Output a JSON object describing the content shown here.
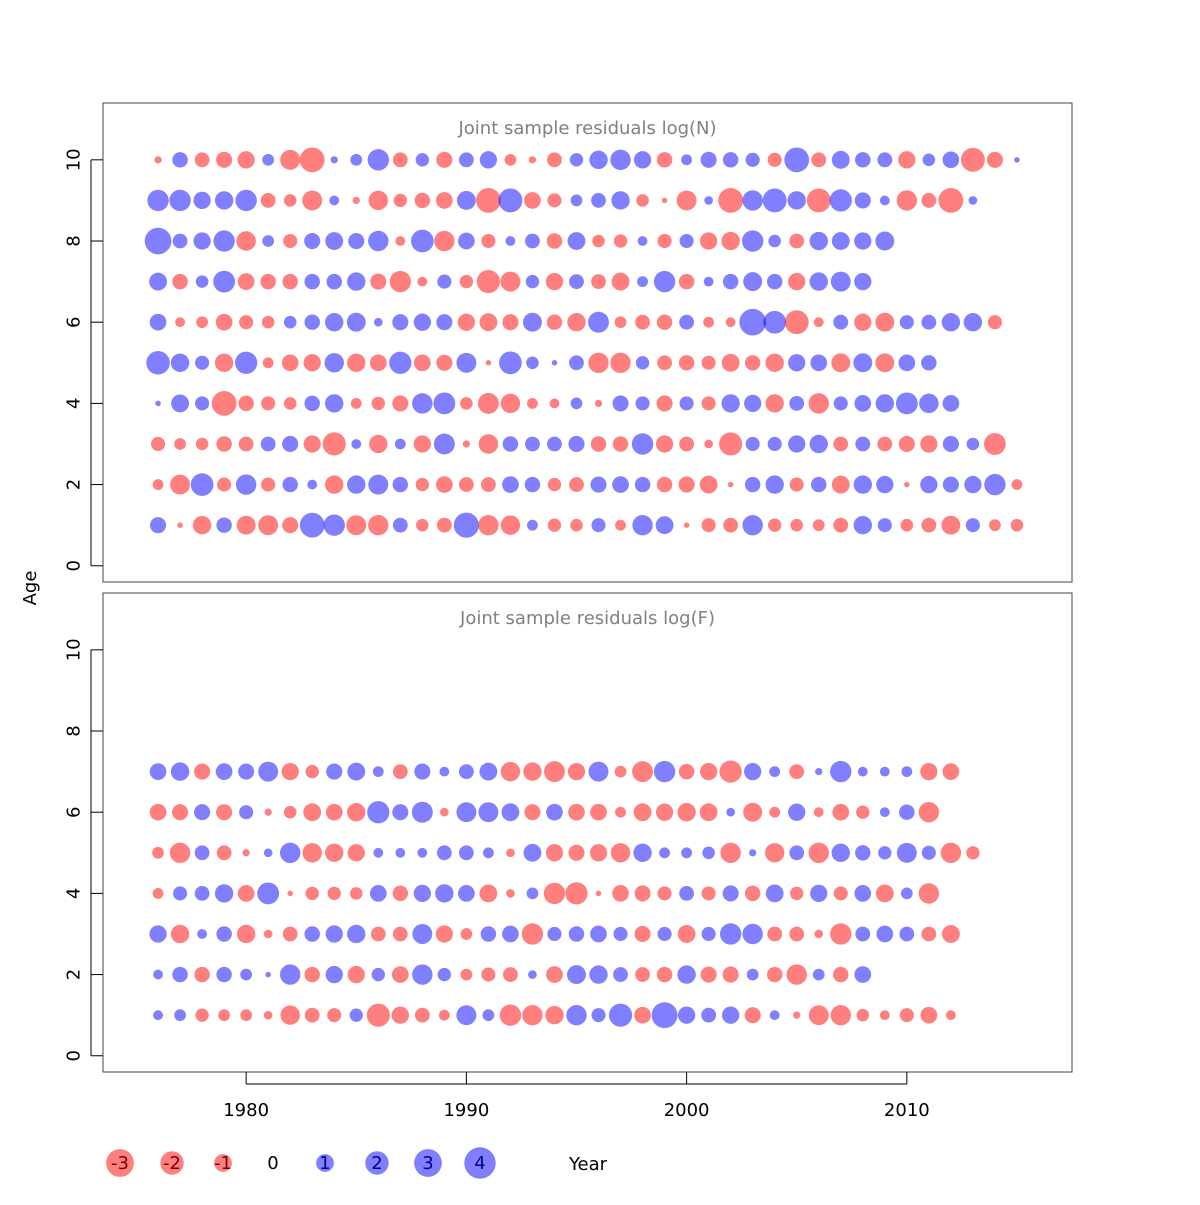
{
  "y_axis_label": "Age",
  "x_axis_label": "Year",
  "colors": {
    "positive": "#0000FF",
    "negative": "#FF0000",
    "title": "#808080",
    "frame": "#000000"
  },
  "fill_alpha": 0.5,
  "legend": [
    "-3",
    "-2",
    "-1",
    "0",
    "1",
    "2",
    "3",
    "4"
  ],
  "chart_data": [
    {
      "type": "bubble",
      "title": "Joint sample residuals log(N)",
      "xlabel": "Year",
      "ylabel": "Age",
      "xlim": [
        1973.5,
        2017.5
      ],
      "ylim": [
        -0.4,
        11.4
      ],
      "x_ticks": [
        1980,
        1990,
        2000,
        2010
      ],
      "y_ticks": [
        0,
        2,
        4,
        6,
        8,
        10
      ],
      "years": [
        1976,
        1977,
        1978,
        1979,
        1980,
        1981,
        1982,
        1983,
        1984,
        1985,
        1986,
        1987,
        1988,
        1989,
        1990,
        1991,
        1992,
        1993,
        1994,
        1995,
        1996,
        1997,
        1998,
        1999,
        2000,
        2001,
        2002,
        2003,
        2004,
        2005,
        2006,
        2007,
        2008,
        2009,
        2010,
        2011,
        2012,
        2013,
        2014,
        2015
      ],
      "ages": [
        1,
        2,
        3,
        4,
        5,
        6,
        7,
        8,
        9,
        10
      ],
      "residuals": [
        [
          1.2,
          -0.1,
          -1.6,
          1.1,
          -1.7,
          -1.9,
          -1.2,
          3.0,
          2.2,
          -1.9,
          -2.0,
          1.0,
          -0.7,
          -1.0,
          3.1,
          -2.0,
          -1.8,
          0.5,
          -0.8,
          -0.7,
          0.9,
          -0.5,
          2.0,
          1.5,
          -0.1,
          -0.9,
          -1.0,
          2.0,
          -0.8,
          -0.7,
          -0.6,
          -1.0,
          1.6,
          0.9,
          -0.7,
          -1.0,
          -1.7,
          0.9,
          -0.6,
          -0.7
        ],
        [
          -0.5,
          -1.9,
          2.5,
          -0.9,
          2.0,
          -0.9,
          1.1,
          0.4,
          -1.6,
          1.6,
          1.9,
          1.1,
          -0.8,
          -1.3,
          -1.0,
          -1.0,
          1.3,
          1.1,
          -0.8,
          -1.0,
          1.2,
          1.3,
          1.1,
          -1.1,
          -1.2,
          -1.5,
          -0.1,
          1.1,
          1.6,
          -0.9,
          1.1,
          -1.5,
          1.6,
          1.4,
          -0.1,
          1.4,
          1.2,
          1.4,
          2.2,
          -0.5
        ],
        [
          -0.9,
          -0.6,
          -0.7,
          -1.1,
          -1.0,
          1.0,
          1.2,
          -1.4,
          -2.6,
          0.4,
          -1.6,
          0.5,
          -1.4,
          2.1,
          -0.2,
          -1.8,
          1.1,
          1.0,
          1.0,
          1.2,
          -1.1,
          -1.1,
          2.2,
          -1.4,
          -1.0,
          -0.3,
          -2.6,
          0.9,
          0.9,
          1.4,
          1.6,
          -1.0,
          1.0,
          -1.0,
          -1.2,
          -1.4,
          1.2,
          0.7,
          -2.3
        ],
        [
          0.1,
          1.5,
          0.9,
          -3.0,
          -1.1,
          -0.9,
          -0.7,
          1.1,
          1.6,
          -0.5,
          -0.8,
          -1.2,
          2.0,
          2.3,
          -0.7,
          -2.1,
          -1.8,
          -0.5,
          -0.4,
          0.6,
          -0.2,
          1.2,
          0.9,
          -1.2,
          0.9,
          -0.9,
          1.6,
          1.4,
          -1.6,
          1.0,
          -2.0,
          0.9,
          1.3,
          1.6,
          2.3,
          1.8,
          1.3
        ],
        [
          2.7,
          1.6,
          0.9,
          -1.6,
          2.4,
          -0.5,
          -1.3,
          -1.4,
          1.8,
          -1.6,
          -1.3,
          2.4,
          -1.3,
          -1.2,
          1.9,
          -0.1,
          2.5,
          0.7,
          0.1,
          1.0,
          -2.0,
          -2.0,
          0.8,
          -1.0,
          -1.1,
          -0.9,
          -1.5,
          -1.1,
          -1.6,
          1.4,
          1.3,
          -1.7,
          1.7,
          -1.7,
          1.3,
          1.1
        ],
        [
          1.3,
          -0.4,
          -0.6,
          -1.3,
          -0.9,
          -0.7,
          0.7,
          1.1,
          1.6,
          1.7,
          0.3,
          1.2,
          1.4,
          1.2,
          -1.4,
          -1.5,
          -1.2,
          1.7,
          -1.1,
          -1.6,
          2.1,
          -0.6,
          -1.0,
          -1.1,
          1.0,
          -0.5,
          -0.4,
          3.5,
          2.5,
          -2.8,
          -0.4,
          1.0,
          -1.4,
          -1.7,
          0.9,
          1.0,
          1.6,
          1.6,
          -0.9
        ],
        [
          1.5,
          -1.1,
          0.7,
          2.3,
          -1.3,
          -1.1,
          -1.1,
          1.1,
          1.1,
          1.6,
          -1.2,
          -2.2,
          -0.4,
          0.9,
          -0.8,
          -2.6,
          -1.9,
          0.8,
          -1.4,
          1.0,
          -1.0,
          -1.5,
          0.5,
          2.2,
          -1.1,
          0.4,
          1.1,
          1.7,
          1.1,
          -1.4,
          1.6,
          1.9,
          1.4
        ],
        [
          3.5,
          1.0,
          1.4,
          2.2,
          -1.8,
          0.6,
          -0.9,
          1.2,
          1.5,
          1.2,
          2.0,
          -0.4,
          2.5,
          -2.0,
          1.3,
          -0.9,
          0.4,
          1.0,
          -1.1,
          1.5,
          -0.7,
          -0.8,
          0.4,
          -0.9,
          0.9,
          -1.4,
          -1.6,
          2.2,
          0.7,
          -1.0,
          1.6,
          1.5,
          1.4,
          1.7
        ],
        [
          2.2,
          2.2,
          1.4,
          1.6,
          2.2,
          -1.0,
          -0.7,
          -1.9,
          0.4,
          -0.2,
          -1.8,
          -0.8,
          -1.1,
          -1.3,
          1.7,
          -3.0,
          2.8,
          -1.3,
          -0.9,
          0.6,
          1.0,
          1.6,
          -0.7,
          -0.1,
          -1.9,
          0.3,
          -3.0,
          2.0,
          2.8,
          1.6,
          -2.8,
          2.4,
          1.2,
          0.4,
          -2.0,
          -1.0,
          -3.0,
          0.3
        ],
        [
          -0.2,
          1.1,
          -1.0,
          -1.2,
          -1.4,
          0.6,
          -1.9,
          -3.0,
          0.2,
          0.6,
          2.2,
          -1.0,
          0.8,
          -1.2,
          1.0,
          1.4,
          -0.6,
          -0.2,
          -1.0,
          0.8,
          1.6,
          2.0,
          1.4,
          -1.1,
          0.5,
          1.2,
          1.1,
          0.9,
          -0.9,
          3.0,
          -1.0,
          1.5,
          1.1,
          1.0,
          -1.4,
          0.7,
          1.3,
          -2.8,
          -1.2,
          0.1
        ]
      ]
    },
    {
      "type": "bubble",
      "title": "Joint sample residuals log(F)",
      "xlabel": "Year",
      "ylabel": "Age",
      "xlim": [
        1973.5,
        2017.5
      ],
      "ylim": [
        -0.4,
        11.4
      ],
      "x_ticks": [
        1980,
        1990,
        2000,
        2010
      ],
      "y_ticks": [
        0,
        2,
        4,
        6,
        8,
        10
      ],
      "years": [
        1976,
        1977,
        1978,
        1979,
        1980,
        1981,
        1982,
        1983,
        1984,
        1985,
        1986,
        1987,
        1988,
        1989,
        1990,
        1991,
        1992,
        1993,
        1994,
        1995,
        1996,
        1997,
        1998,
        1999,
        2000,
        2001,
        2002,
        2003,
        2004,
        2005,
        2006,
        2007,
        2008,
        2009,
        2010,
        2011,
        2012,
        2013,
        2014,
        2015
      ],
      "ages": [
        1,
        2,
        3,
        4,
        5,
        6,
        7
      ],
      "residuals": [
        [
          0.4,
          0.6,
          -0.8,
          -0.6,
          -0.6,
          -0.3,
          -1.8,
          -1.0,
          -0.9,
          0.8,
          -2.6,
          -1.4,
          -1.0,
          -0.5,
          1.9,
          0.6,
          -2.2,
          -2.0,
          -1.6,
          2.0,
          0.9,
          2.6,
          -1.3,
          3.3,
          1.4,
          1.0,
          1.4,
          -1.2,
          0.4,
          -0.2,
          -1.9,
          -2.0,
          -0.7,
          -0.4,
          -0.9,
          -1.3,
          -0.4
        ],
        [
          0.4,
          1.1,
          -1.1,
          1.1,
          0.6,
          0.1,
          2.0,
          -1.1,
          1.4,
          -1.4,
          0.8,
          -1.3,
          2.0,
          0.8,
          -0.6,
          -0.9,
          -1.0,
          0.3,
          -1.3,
          1.7,
          1.6,
          1.0,
          -1.0,
          -1.1,
          1.6,
          -1.2,
          -1.2,
          0.6,
          -1.1,
          -2.0,
          0.6,
          -1.1,
          1.3
        ],
        [
          1.4,
          -1.6,
          0.4,
          1.1,
          -1.6,
          -0.3,
          -1.0,
          1.1,
          1.4,
          1.6,
          -1.0,
          -1.0,
          1.9,
          -1.4,
          -0.6,
          1.1,
          1.3,
          -2.2,
          0.9,
          1.1,
          1.3,
          0.9,
          -1.2,
          0.9,
          -1.5,
          0.9,
          2.2,
          2.0,
          -1.0,
          -1.0,
          -0.3,
          -2.2,
          1.0,
          1.3,
          1.0,
          -1.0,
          -1.5
        ],
        [
          -0.5,
          0.9,
          1.0,
          1.6,
          -1.3,
          2.3,
          -0.1,
          -0.8,
          -0.8,
          -0.7,
          1.3,
          -1.1,
          1.4,
          1.6,
          1.3,
          -1.5,
          -0.3,
          0.6,
          -2.2,
          -2.4,
          -0.1,
          -1.3,
          -1.2,
          -0.9,
          1.0,
          -0.9,
          1.2,
          -1.1,
          1.5,
          -0.8,
          1.4,
          -0.9,
          1.3,
          -1.5,
          0.6,
          -2.0
        ],
        [
          -0.6,
          -2.0,
          1.0,
          -1.0,
          -0.2,
          0.3,
          2.0,
          -1.8,
          -1.6,
          -1.4,
          0.4,
          0.4,
          0.4,
          1.0,
          1.0,
          0.5,
          -0.3,
          1.5,
          -1.4,
          -1.2,
          -1.4,
          -1.8,
          1.6,
          0.5,
          0.5,
          0.7,
          -2.0,
          0.2,
          -1.8,
          1.0,
          -2.0,
          1.6,
          1.1,
          0.8,
          1.9,
          0.9,
          -2.0,
          -0.8
        ],
        [
          -1.3,
          -1.2,
          1.2,
          -1.2,
          0.9,
          -0.2,
          -0.7,
          -1.5,
          -1.3,
          -1.6,
          2.4,
          1.2,
          2.1,
          -0.3,
          1.9,
          1.9,
          1.5,
          -1.2,
          1.3,
          -1.3,
          -1.3,
          -0.5,
          -1.5,
          -1.4,
          -1.6,
          -1.5,
          0.3,
          -1.7,
          -0.5,
          1.4,
          -0.4,
          -1.3,
          -0.8,
          0.4,
          1.1,
          -2.0
        ],
        [
          1.3,
          1.6,
          -1.2,
          1.3,
          1.2,
          1.9,
          -1.4,
          -0.8,
          1.2,
          1.5,
          0.5,
          -1.0,
          1.2,
          0.4,
          1.0,
          1.5,
          -1.8,
          -1.6,
          -2.1,
          -1.4,
          1.9,
          -0.6,
          -2.1,
          2.2,
          -1.1,
          -1.4,
          -2.4,
          1.4,
          0.5,
          -1.0,
          0.2,
          2.2,
          0.4,
          0.4,
          0.5,
          -1.4,
          -1.3
        ]
      ]
    }
  ]
}
